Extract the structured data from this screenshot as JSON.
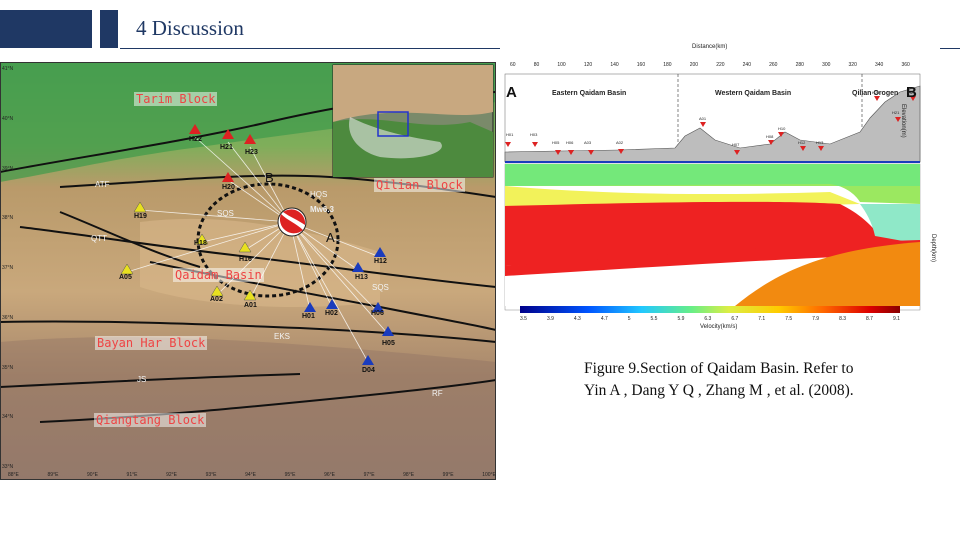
{
  "header": {
    "title": "4  Discussion"
  },
  "map": {
    "blocks": [
      {
        "text": "Tarim Block"
      },
      {
        "text": "Qilian Block"
      },
      {
        "text": "Qaidam Basin"
      },
      {
        "text": "Bayan Har Block"
      },
      {
        "text": "Qiangtang Block"
      }
    ],
    "faults": [
      "ATF",
      "QTT",
      "HQS",
      "SQS",
      "SQS",
      "EKS",
      "JS",
      "RF"
    ],
    "stations_red": [
      "H22",
      "H21",
      "H23",
      "H20"
    ],
    "stations_yellow": [
      "H19",
      "H18",
      "H16",
      "A05",
      "A02",
      "A01"
    ],
    "stations_blue": [
      "H12",
      "H13",
      "H06",
      "H01",
      "H02",
      "H05",
      "D04"
    ],
    "event_label": "Mw6.3",
    "point_a": "A",
    "point_b": "B",
    "lon_ticks": [
      "88°E",
      "89°E",
      "90°E",
      "91°E",
      "92°E",
      "93°E",
      "94°E",
      "95°E",
      "96°E",
      "97°E",
      "98°E",
      "99°E",
      "100°E"
    ],
    "lat_ticks": [
      "41°N",
      "40°N",
      "39°N",
      "38°N",
      "37°N",
      "36°N",
      "35°N",
      "34°N",
      "33°N"
    ]
  },
  "section": {
    "label_a": "A",
    "label_b": "B",
    "regions": [
      "Eastern Qaidam Basin",
      "Western Qaidam Basin",
      "Qilian Orogen"
    ],
    "top_axis": "Distance(km)",
    "right_axis": "Elevation(m)",
    "right_axis2": "Depth(km)",
    "scale_label": "Velocity(km/s)",
    "scale_ticks": [
      "3.5",
      "3.9",
      "4.3",
      "4.7",
      "5",
      "5.5",
      "5.9",
      "6.3",
      "6.7",
      "7.1",
      "7.5",
      "7.9",
      "8.3",
      "8.7",
      "9.1"
    ],
    "dist_ticks": [
      "60",
      "80",
      "100",
      "120",
      "140",
      "160",
      "180",
      "200",
      "220",
      "240",
      "260",
      "280",
      "300",
      "320",
      "340",
      "360"
    ],
    "station_labels": [
      "H01",
      "H03",
      "H05",
      "H06",
      "A03",
      "A02",
      "A01",
      "H07",
      "H08",
      "H10",
      "H12",
      "H13",
      "H20",
      "H21",
      "H22"
    ]
  },
  "caption": {
    "line1": "Figure 9.Section of Qaidam Basin. Refer to",
    "line2": "Yin A , Dang Y Q , Zhang M , et al. (2008)."
  }
}
